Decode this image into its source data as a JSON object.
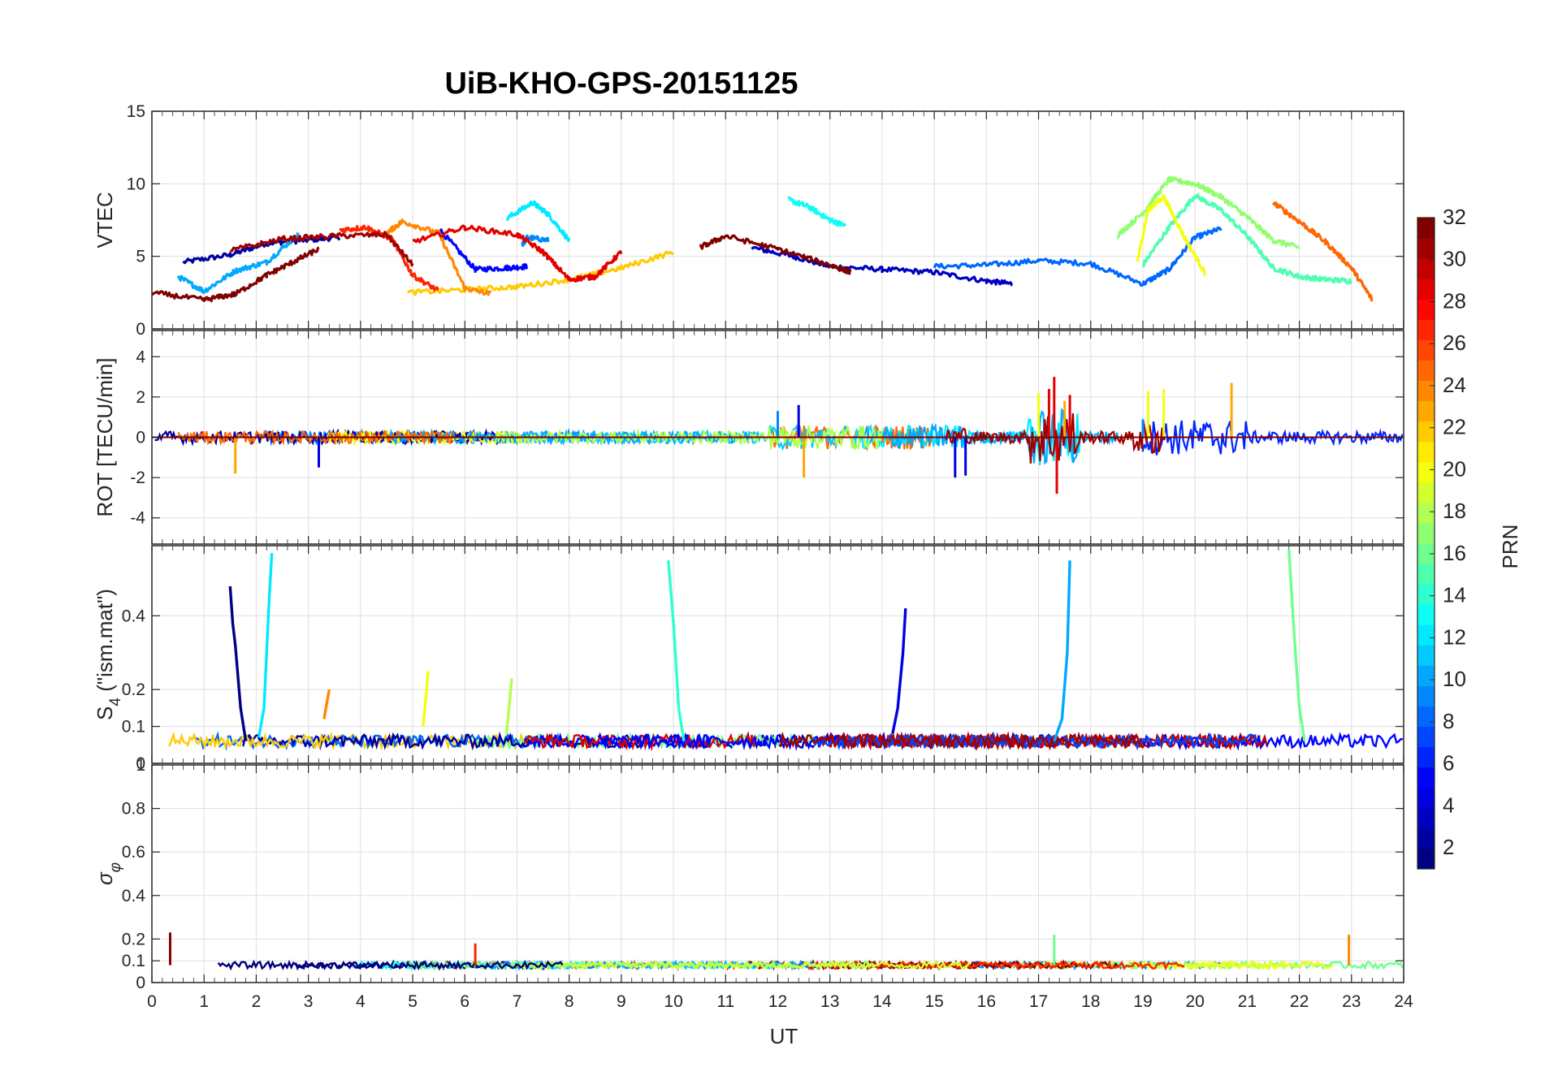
{
  "title": "UiB-KHO-GPS-20151125",
  "xlabel": "UT",
  "colorbar": {
    "label": "PRN",
    "ticks": [
      2,
      4,
      6,
      8,
      10,
      12,
      14,
      16,
      18,
      20,
      22,
      24,
      26,
      28,
      30,
      32
    ],
    "range": [
      1,
      32
    ],
    "colormap": "jet"
  },
  "chart_data": [
    {
      "type": "line",
      "ylabel": "VTEC",
      "xlim": [
        0,
        24
      ],
      "ylim": [
        0,
        15
      ],
      "yticks": [
        0,
        5,
        10,
        15
      ],
      "xticks": [
        0,
        1,
        2,
        3,
        4,
        5,
        6,
        7,
        8,
        9,
        10,
        11,
        12,
        13,
        14,
        15,
        16,
        17,
        18,
        19,
        20,
        21,
        22,
        23,
        24
      ],
      "grid": true,
      "series": [
        {
          "prn": 2,
          "x": [
            0.6,
            1.5,
            2.2,
            2.9,
            3.6
          ],
          "y": [
            4.6,
            5.1,
            5.9,
            6.1,
            6.3
          ]
        },
        {
          "prn": 3,
          "x": [
            11.5,
            12.3,
            13.0,
            14.0,
            15.0,
            16.0,
            16.5
          ],
          "y": [
            5.6,
            5.0,
            4.3,
            4.1,
            3.9,
            3.3,
            3.1
          ]
        },
        {
          "prn": 5,
          "x": [
            5.5,
            6.2,
            6.8,
            7.2
          ],
          "y": [
            6.9,
            4.1,
            4.2,
            4.3
          ]
        },
        {
          "prn": 8,
          "x": [
            15.0,
            16.0,
            17.0,
            18.0,
            19.0,
            19.5,
            20.0,
            20.5
          ],
          "y": [
            4.3,
            4.4,
            4.7,
            4.5,
            3.1,
            4.1,
            6.3,
            6.9
          ]
        },
        {
          "prn": 9,
          "x": [
            7.1,
            7.2,
            7.6
          ],
          "y": [
            5.8,
            6.3,
            6.1
          ]
        },
        {
          "prn": 10,
          "x": [
            0.5,
            1.0,
            1.6,
            2.2,
            2.8
          ],
          "y": [
            3.6,
            2.6,
            4.0,
            4.6,
            6.5
          ]
        },
        {
          "prn": 12,
          "x": [
            6.8,
            7.3,
            7.6,
            8.0
          ],
          "y": [
            7.6,
            8.7,
            7.9,
            6.1
          ]
        },
        {
          "prn": 13,
          "x": [
            12.2,
            12.6,
            13.0,
            13.3
          ],
          "y": [
            8.9,
            8.4,
            7.5,
            7.1
          ]
        },
        {
          "prn": 15,
          "x": [
            19.0,
            19.5,
            20.0,
            20.5,
            21.0,
            21.5,
            22.0,
            22.5,
            23.0
          ],
          "y": [
            4.4,
            7.0,
            9.2,
            8.2,
            6.4,
            4.2,
            3.6,
            3.4,
            3.3
          ]
        },
        {
          "prn": 17,
          "x": [
            18.5,
            19.0,
            19.5,
            20.0,
            20.5,
            21.0,
            21.5,
            22.0
          ],
          "y": [
            6.4,
            8.0,
            10.3,
            10.0,
            9.1,
            7.7,
            6.1,
            5.6
          ]
        },
        {
          "prn": 20,
          "x": [
            18.9,
            19.1,
            19.4,
            19.8,
            20.2
          ],
          "y": [
            4.7,
            8.2,
            9.1,
            6.3,
            3.8
          ]
        },
        {
          "prn": 22,
          "x": [
            4.9,
            6.0,
            7.0,
            8.0,
            9.0,
            10.0
          ],
          "y": [
            2.5,
            2.7,
            2.9,
            3.4,
            4.2,
            5.3
          ]
        },
        {
          "prn": 24,
          "x": [
            4.5,
            4.8,
            5.5,
            6.0,
            6.5
          ],
          "y": [
            6.6,
            7.4,
            6.6,
            2.8,
            2.4
          ]
        },
        {
          "prn": 25,
          "x": [
            21.5,
            22.0,
            22.5,
            23.0,
            23.4
          ],
          "y": [
            8.7,
            7.4,
            6.0,
            4.2,
            2.0
          ]
        },
        {
          "prn": 27,
          "x": [
            3.6,
            4.1,
            4.6,
            5.0,
            5.5
          ],
          "y": [
            6.8,
            7.0,
            6.2,
            3.7,
            2.6
          ]
        },
        {
          "prn": 29,
          "x": [
            5.0,
            6.0,
            7.0,
            7.5,
            8.0,
            8.5,
            9.0
          ],
          "y": [
            6.0,
            7.0,
            6.5,
            5.3,
            3.4,
            3.6,
            5.3
          ]
        },
        {
          "prn": 31,
          "x": [
            1.5,
            2.5,
            3.5,
            4.5,
            5.0
          ],
          "y": [
            5.4,
            6.2,
            6.4,
            6.5,
            4.4
          ]
        },
        {
          "prn": 32,
          "x": [
            0.0,
            1.0,
            1.6,
            2.2,
            2.7,
            3.2
          ],
          "y": [
            2.5,
            2.0,
            2.4,
            3.7,
            4.6,
            5.5
          ]
        },
        {
          "prn": 32,
          "x": [
            10.5,
            11.0,
            12.0,
            13.0,
            13.4
          ],
          "y": [
            5.6,
            6.4,
            5.5,
            4.4,
            3.9
          ]
        }
      ]
    },
    {
      "type": "line",
      "ylabel": "ROT [TECU/min]",
      "xlim": [
        0,
        24
      ],
      "ylim": [
        -5.3,
        5.3
      ],
      "yticks": [
        -4,
        -2,
        0,
        2,
        4
      ],
      "grid": true,
      "series": [
        {
          "prn": 4,
          "x": [
            3.2,
            12.4,
            15.4,
            15.6
          ],
          "y": [
            -1.5,
            1.6,
            -2.0,
            -1.9
          ]
        },
        {
          "prn": 9,
          "x": [
            12.0,
            19.0
          ],
          "y": [
            1.3,
            0.9
          ]
        },
        {
          "prn": 20,
          "x": [
            17.0,
            19.1,
            19.4
          ],
          "y": [
            2.2,
            2.3,
            2.4
          ]
        },
        {
          "prn": 23,
          "x": [
            1.6,
            12.5,
            20.7,
            17.5
          ],
          "y": [
            -1.8,
            -2.0,
            2.7,
            1.8
          ]
        },
        {
          "prn": 29,
          "x": [
            17.3,
            17.35,
            17.2,
            17.6
          ],
          "y": [
            3.0,
            -2.8,
            2.4,
            2.1
          ]
        }
      ]
    },
    {
      "type": "line",
      "ylabel": "S4 (\"ism.mat\")",
      "xlim": [
        0,
        24
      ],
      "ylim": [
        0,
        0.59
      ],
      "yticks": [
        0,
        0.1,
        0.2,
        0.4
      ],
      "grid": true,
      "series": [
        {
          "prn": 1,
          "x": [
            1.5,
            1.55,
            1.6,
            1.7,
            1.8
          ],
          "y": [
            0.48,
            0.38,
            0.32,
            0.15,
            0.06
          ]
        },
        {
          "prn": 12,
          "x": [
            2.05,
            2.15,
            2.25,
            2.3
          ],
          "y": [
            0.07,
            0.15,
            0.45,
            0.57
          ]
        },
        {
          "prn": 14,
          "x": [
            9.9,
            10.0,
            10.1,
            10.2
          ],
          "y": [
            0.55,
            0.38,
            0.15,
            0.06
          ]
        },
        {
          "prn": 4,
          "x": [
            14.2,
            14.3,
            14.4,
            14.45
          ],
          "y": [
            0.08,
            0.15,
            0.3,
            0.42
          ]
        },
        {
          "prn": 10,
          "x": [
            17.3,
            17.45,
            17.55,
            17.6
          ],
          "y": [
            0.06,
            0.12,
            0.3,
            0.55
          ]
        },
        {
          "prn": 16,
          "x": [
            21.8,
            21.9,
            22.0,
            22.1
          ],
          "y": [
            0.58,
            0.35,
            0.15,
            0.06
          ]
        },
        {
          "prn": 24,
          "x": [
            3.3,
            3.4
          ],
          "y": [
            0.12,
            0.2
          ]
        },
        {
          "prn": 20,
          "x": [
            5.2,
            5.3
          ],
          "y": [
            0.1,
            0.25
          ]
        },
        {
          "prn": 18,
          "x": [
            6.8,
            6.9
          ],
          "y": [
            0.08,
            0.23
          ]
        }
      ]
    },
    {
      "type": "line",
      "ylabel": "σ_φ",
      "xlim": [
        0,
        24
      ],
      "ylim": [
        0,
        1
      ],
      "yticks": [
        0,
        0.1,
        0.2,
        0.4,
        0.6,
        0.8,
        1
      ],
      "grid": true,
      "series": [
        {
          "prn": 27,
          "x": [
            6.2
          ],
          "y": [
            0.18
          ]
        },
        {
          "prn": 32,
          "x": [
            0.35
          ],
          "y": [
            0.23
          ]
        },
        {
          "prn": 16,
          "x": [
            17.3
          ],
          "y": [
            0.22
          ]
        },
        {
          "prn": 24,
          "x": [
            22.95
          ],
          "y": [
            0.22
          ]
        }
      ]
    }
  ]
}
